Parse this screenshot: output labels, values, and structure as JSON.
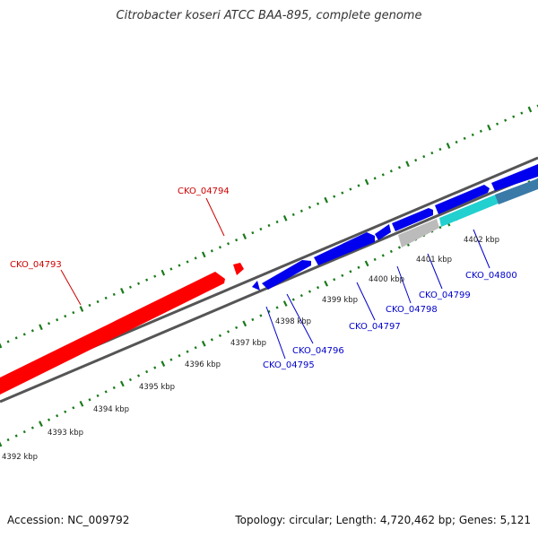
{
  "title": "Citrobacter koseri ATCC BAA-895, complete genome",
  "footer": {
    "accession": "Accession: NC_009792",
    "stats": "Topology: circular; Length: 4,720,462 bp; Genes: 5,121"
  },
  "colors": {
    "forward_gene": "#ff0000",
    "reverse_gene": "#0000ee",
    "cyan_feature": "#22d0d0",
    "gray_feature": "#bbbbbb",
    "backbone": "#666666",
    "tick": "#1a7a1a",
    "label_forward": "#d00000",
    "label_reverse": "#0000cc"
  },
  "scale_ticks": [
    "4392 kbp",
    "4393 kbp",
    "4394 kbp",
    "4395 kbp",
    "4396 kbp",
    "4397 kbp",
    "4398 kbp",
    "4399 kbp",
    "4400 kbp",
    "4401 kbp",
    "4402 kbp"
  ],
  "genes": [
    {
      "name": "CKO_04793",
      "strand": "forward"
    },
    {
      "name": "CKO_04794",
      "strand": "forward"
    },
    {
      "name": "CKO_04795",
      "strand": "reverse"
    },
    {
      "name": "CKO_04796",
      "strand": "reverse"
    },
    {
      "name": "CKO_04797",
      "strand": "reverse"
    },
    {
      "name": "CKO_04798",
      "strand": "reverse"
    },
    {
      "name": "CKO_04799",
      "strand": "reverse"
    },
    {
      "name": "CKO_04800",
      "strand": "reverse"
    }
  ]
}
